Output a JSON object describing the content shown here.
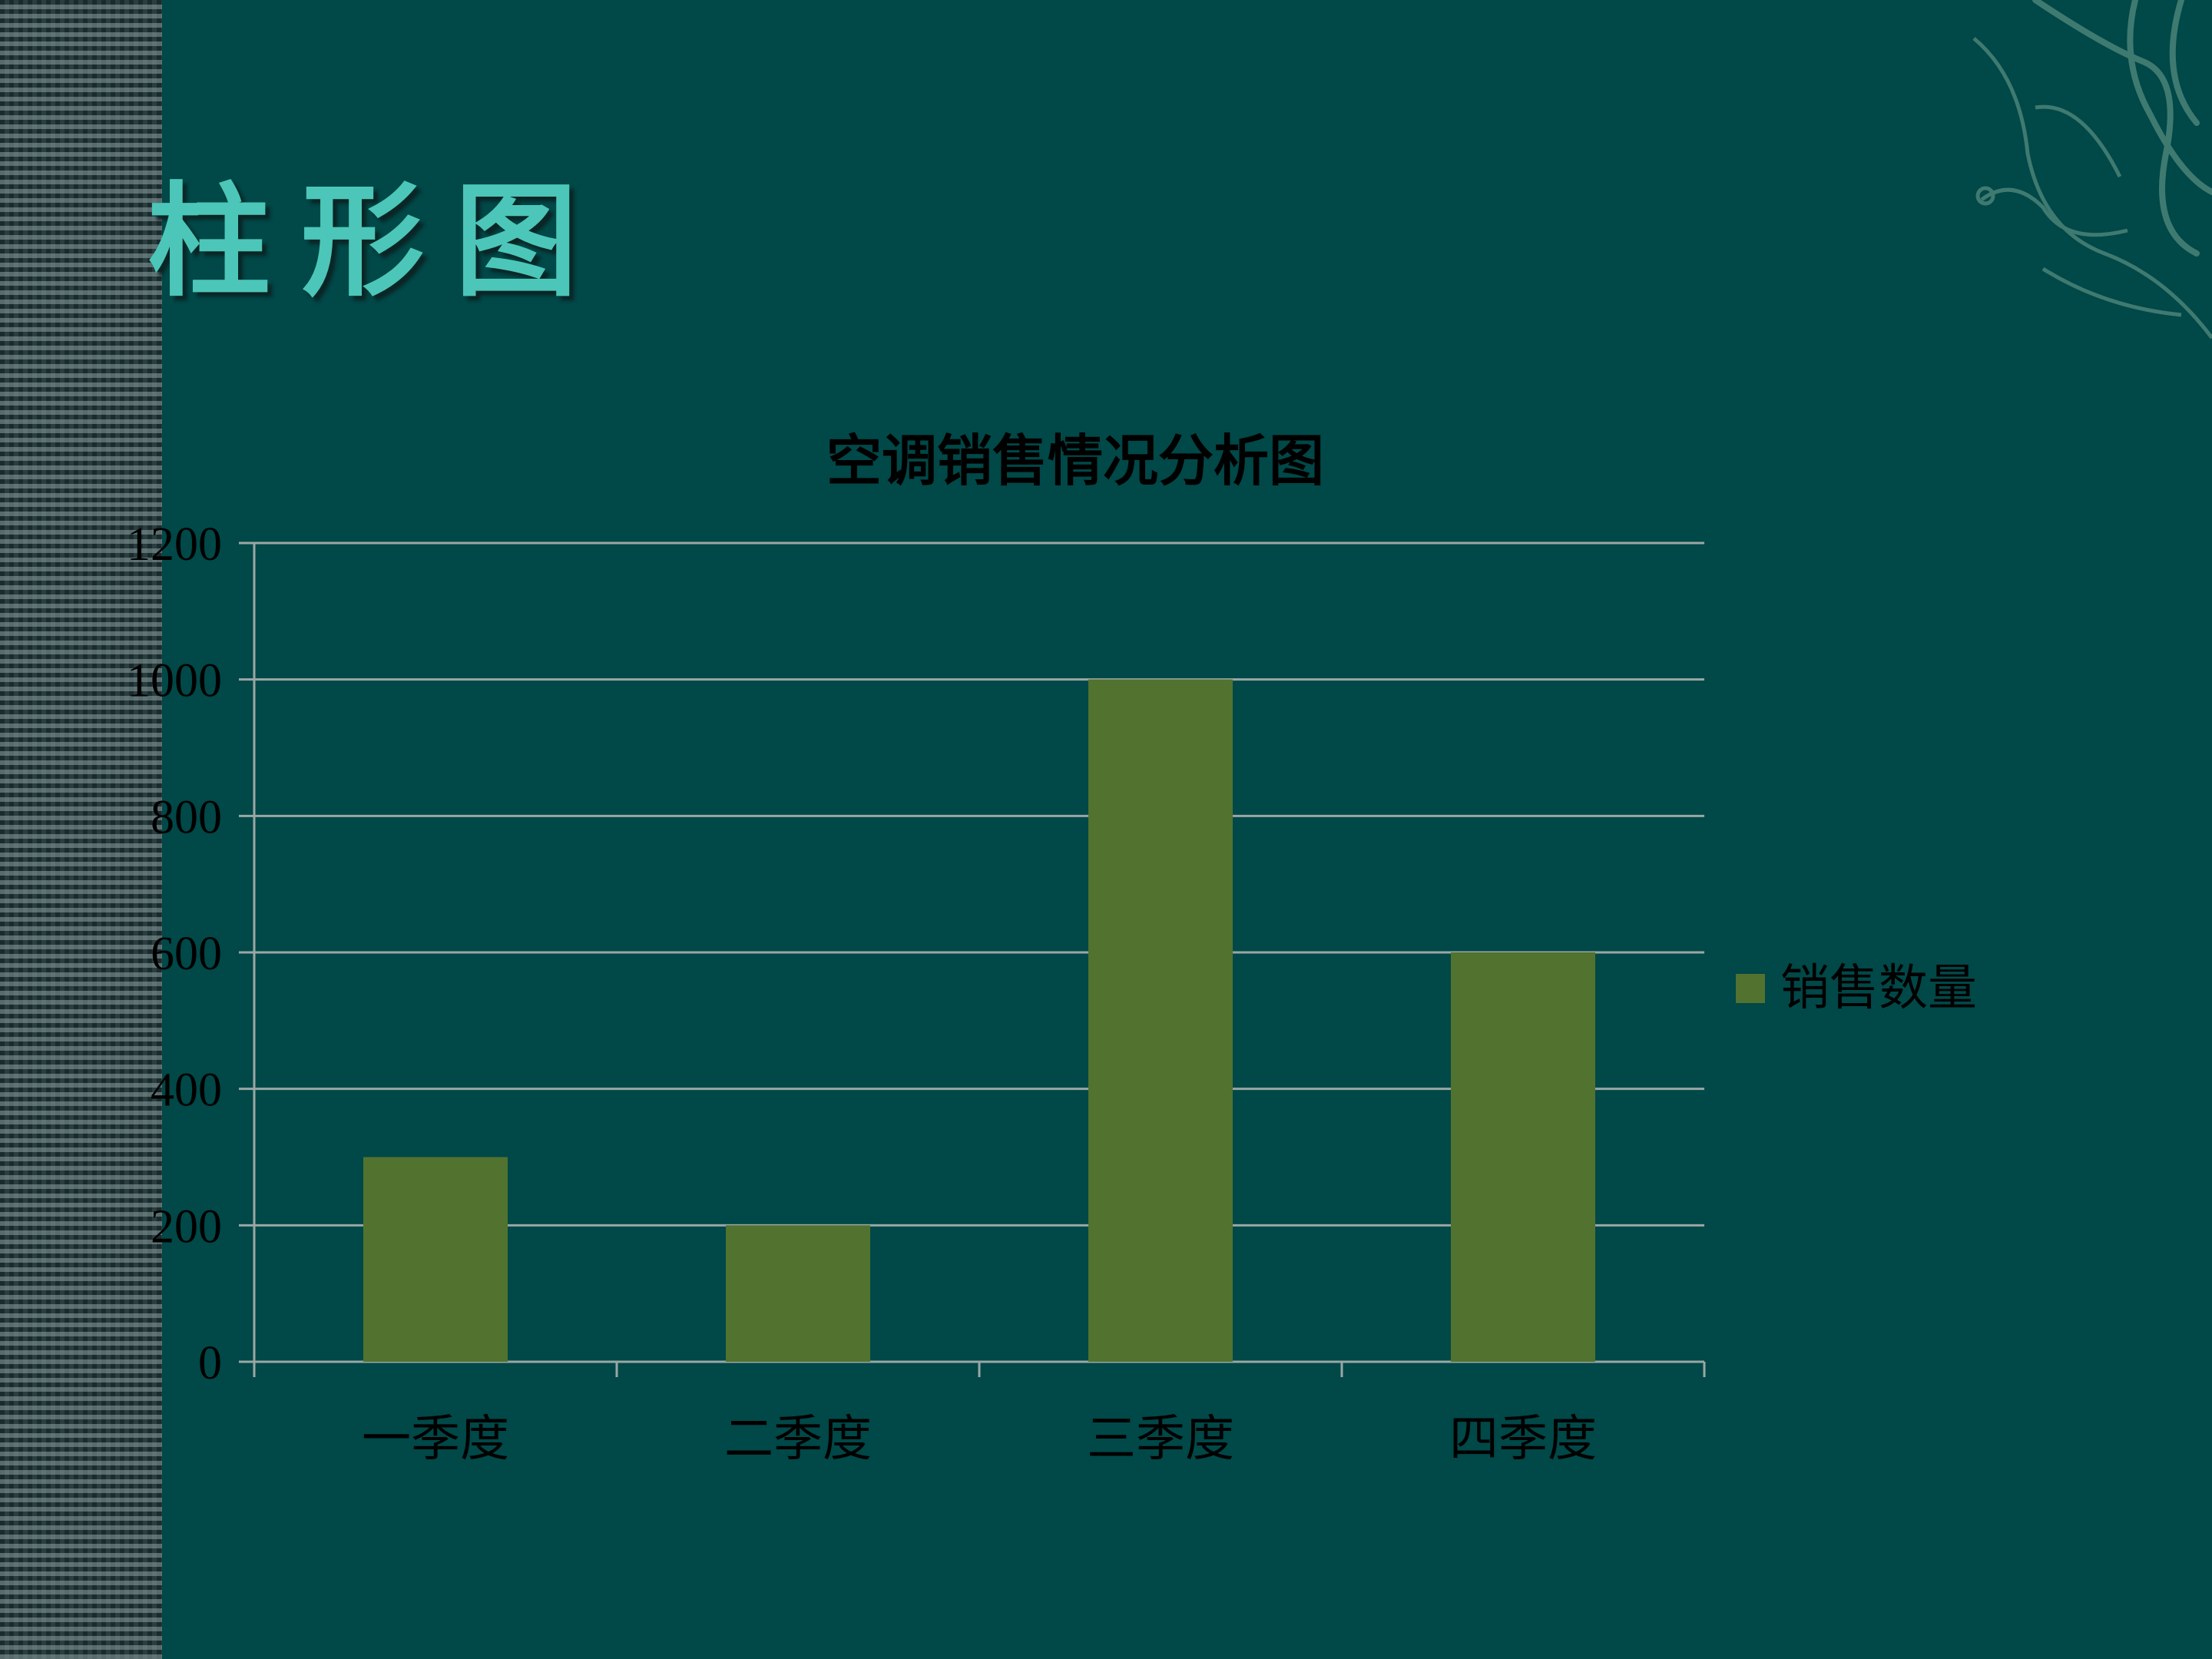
{
  "slide": {
    "title": "柱形图"
  },
  "colors": {
    "background": "#014848",
    "bar": "#52722f",
    "grid": "#9aa7a4",
    "text": "#000000",
    "title": "#4cc6b8"
  },
  "chart_data": {
    "type": "bar",
    "title": "空调销售情况分析图",
    "categories": [
      "一季度",
      "二季度",
      "三季度",
      "四季度"
    ],
    "series": [
      {
        "name": "销售数量",
        "values": [
          300,
          200,
          1000,
          600
        ]
      }
    ],
    "yticks": [
      "0",
      "200",
      "400",
      "600",
      "800",
      "1000",
      "1200"
    ],
    "ylim": [
      0,
      1200
    ],
    "grid": true,
    "legend": "right"
  }
}
